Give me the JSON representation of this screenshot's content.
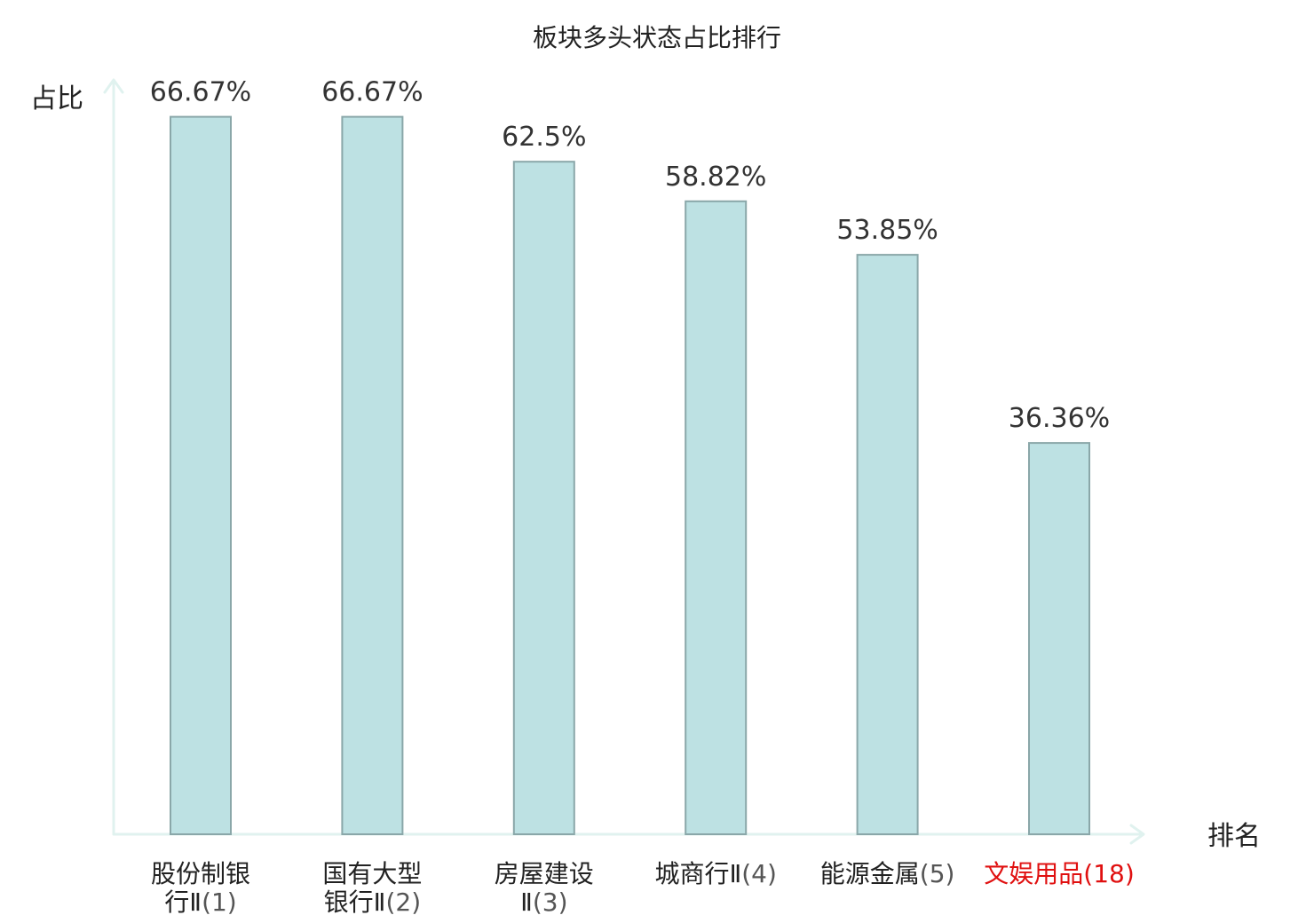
{
  "chart_data": {
    "type": "bar",
    "title": "板块多头状态占比排行",
    "ylabel": "占比",
    "xlabel": "排名",
    "ylim": [
      0,
      70
    ],
    "grid": false,
    "value_suffix": "%",
    "bar_color": "#bde1e3",
    "bar_border_color": "#8aa7a9",
    "axis_color": "#e0f2ef",
    "highlight_color": "#e01010",
    "categories": [
      {
        "lines": [
          "股份制银",
          "行Ⅱ(1)"
        ],
        "value": 66.67,
        "value_label": "66.67%",
        "highlight": false
      },
      {
        "lines": [
          "国有大型",
          "银行Ⅱ(2)"
        ],
        "value": 66.67,
        "value_label": "66.67%",
        "highlight": false
      },
      {
        "lines": [
          "房屋建设",
          "Ⅱ(3)"
        ],
        "value": 62.5,
        "value_label": "62.5%",
        "highlight": false
      },
      {
        "lines": [
          "城商行Ⅱ(4)"
        ],
        "value": 58.82,
        "value_label": "58.82%",
        "highlight": false
      },
      {
        "lines": [
          "能源金属(5)"
        ],
        "value": 53.85,
        "value_label": "53.85%",
        "highlight": false
      },
      {
        "lines": [
          "文娱用品(18)"
        ],
        "value": 36.36,
        "value_label": "36.36%",
        "highlight": true
      }
    ]
  }
}
